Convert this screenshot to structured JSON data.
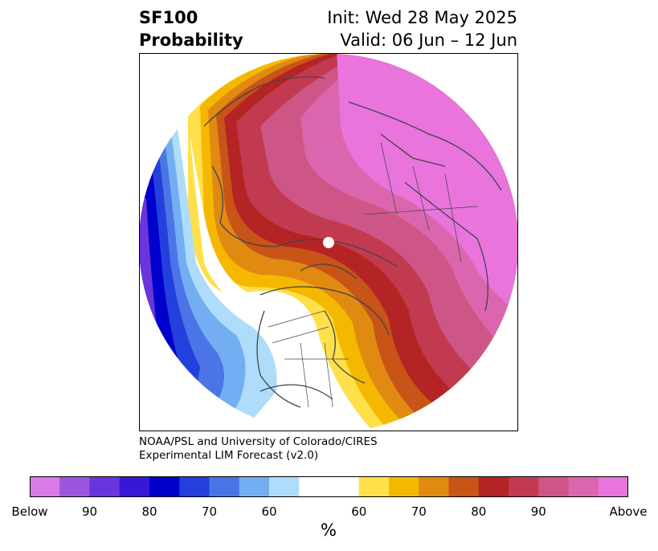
{
  "header": {
    "title_line1": "SF100",
    "title_line2": "Probability",
    "init": "Init: Wed 28 May 2025",
    "valid": "Valid: 06 Jun – 12 Jun"
  },
  "credit": {
    "line1": "NOAA/PSL and University of Colorado/CIRES",
    "line2": "Experimental LIM Forecast (v2.0)"
  },
  "colorbar": {
    "colors": [
      "#d97ae8",
      "#9b55e0",
      "#6a35dc",
      "#3818d6",
      "#0000cc",
      "#2340dc",
      "#4b74e6",
      "#74aef2",
      "#aedcfa",
      "#ffffff",
      "#ffe04a",
      "#f5b800",
      "#e08a12",
      "#c85418",
      "#b42424",
      "#c23a50",
      "#cd5686",
      "#dc66ae",
      "#e874dc"
    ],
    "white_span": 2,
    "ticks": [
      "Below",
      "90",
      "80",
      "70",
      "60",
      "60",
      "70",
      "80",
      "90",
      "Above"
    ],
    "unit": "%"
  },
  "map": {
    "land_line_color": "#444444",
    "pole_marker": "white-dot"
  }
}
